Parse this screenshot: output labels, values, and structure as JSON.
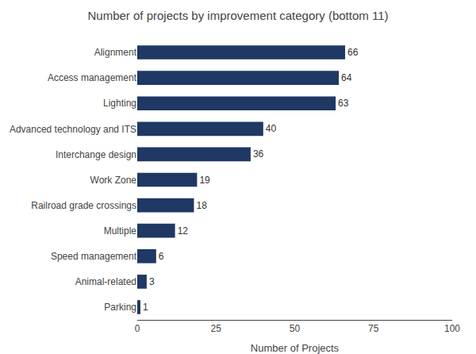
{
  "chart_data": {
    "type": "bar",
    "orientation": "horizontal",
    "title": "Number of projects by improvement category (bottom 11)",
    "categories": [
      "Parking",
      "Animal-related",
      "Speed management",
      "Multiple",
      "Railroad grade crossings",
      "Work Zone",
      "Interchange design",
      "Advanced technology and ITS",
      "Lighting",
      "Access management",
      "Alignment"
    ],
    "values": [
      1,
      3,
      6,
      12,
      18,
      19,
      36,
      40,
      63,
      64,
      66
    ],
    "color": "#1f3864",
    "xlabel": "Number of Projects",
    "xlim": [
      0,
      100
    ],
    "xticks": [
      0,
      25,
      50,
      75,
      100
    ],
    "grid": false,
    "data_labels": true
  }
}
